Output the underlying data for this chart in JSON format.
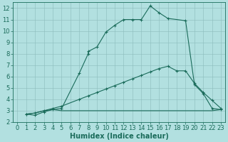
{
  "xlabel": "Humidex (Indice chaleur)",
  "xlim": [
    -0.5,
    23.5
  ],
  "ylim": [
    2,
    12.5
  ],
  "bg_color": "#b2e0e0",
  "grid_color": "#8bbcbc",
  "line_color": "#1a6b5a",
  "curve1_x": [
    1,
    2,
    3,
    4,
    5,
    7,
    8,
    8,
    9,
    10,
    11,
    12,
    13,
    14,
    15,
    16,
    17,
    19,
    20,
    21,
    22,
    23
  ],
  "curve1_y": [
    2.7,
    2.6,
    2.9,
    3.1,
    3.2,
    6.3,
    8.0,
    8.2,
    8.6,
    9.9,
    10.5,
    11.0,
    11.0,
    11.0,
    12.2,
    11.6,
    11.1,
    10.9,
    5.3,
    4.5,
    3.2,
    3.1
  ],
  "curve2_x": [
    1,
    2,
    3,
    4,
    5,
    7,
    8,
    9,
    10,
    11,
    12,
    13,
    14,
    15,
    16,
    17,
    18,
    19,
    20,
    21,
    22,
    23
  ],
  "curve2_y": [
    2.7,
    2.8,
    3.0,
    3.2,
    3.4,
    4.0,
    4.3,
    4.6,
    4.9,
    5.2,
    5.5,
    5.8,
    6.1,
    6.4,
    6.7,
    6.9,
    6.5,
    6.5,
    5.4,
    4.6,
    3.9,
    3.2
  ],
  "curve3_x": [
    1,
    2,
    3,
    4,
    5,
    19,
    22,
    23
  ],
  "curve3_y": [
    2.7,
    2.8,
    3.0,
    3.1,
    3.0,
    3.0,
    3.0,
    3.1
  ],
  "xticks": [
    0,
    1,
    2,
    3,
    4,
    5,
    6,
    7,
    8,
    9,
    10,
    11,
    12,
    13,
    14,
    15,
    16,
    17,
    18,
    19,
    20,
    21,
    22,
    23
  ],
  "yticks": [
    2,
    3,
    4,
    5,
    6,
    7,
    8,
    9,
    10,
    11,
    12
  ],
  "fontsize_label": 7,
  "fontsize_tick": 6
}
